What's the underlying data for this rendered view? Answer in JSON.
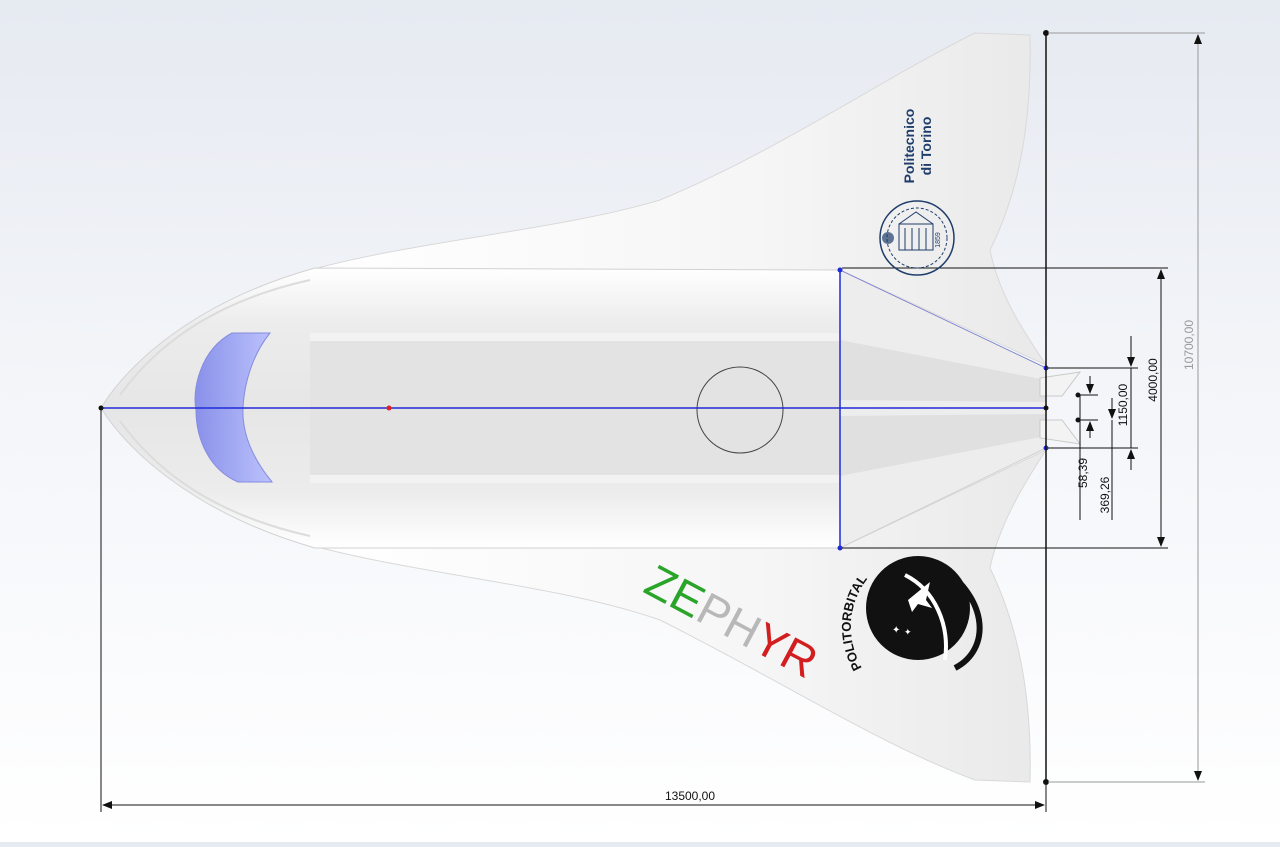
{
  "dimensions": {
    "total_length": "13500,00",
    "total_span": "10700,00",
    "body_width": "4000,00",
    "nozzle_gap": "1150,00",
    "offset_small": "58,39",
    "offset_medium": "369,26"
  },
  "logos": {
    "polito_line1": "Politecnico",
    "polito_line2": "di Torino",
    "polito_year": "1859",
    "politorbital": "POLITORBITAL"
  },
  "title": {
    "letters": [
      {
        "char": "Z",
        "color": "#2aa52a"
      },
      {
        "char": "E",
        "color": "#2aa52a"
      },
      {
        "char": "P",
        "color": "#b8b8b8"
      },
      {
        "char": "H",
        "color": "#b8b8b8"
      },
      {
        "char": "Y",
        "color": "#d21e1e"
      },
      {
        "char": "R",
        "color": "#d21e1e"
      }
    ]
  },
  "colors": {
    "sketch_line": "#1f2bd6",
    "dimension_line": "#111111",
    "canopy": "#9aa3f0",
    "body": "#f4f4f4"
  }
}
